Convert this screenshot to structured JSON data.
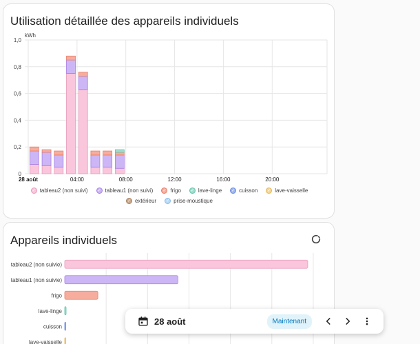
{
  "card1": {
    "title": "Utilisation détaillée des appareils individuels",
    "unit": "kWh"
  },
  "card2": {
    "title": "Appareils individuels"
  },
  "toolbar": {
    "date": "28 août",
    "now_label": "Maintenant"
  },
  "icons": {
    "refresh": "refresh-icon",
    "calendar": "calendar-icon",
    "prev": "chevron-left-icon",
    "next": "chevron-right-icon",
    "menu": "dots-vertical-icon"
  },
  "colors": {
    "tableau2": "#f9c6dc",
    "tableau1": "#cdb6f5",
    "frigo": "#f7ad9e",
    "lave-linge": "#9fdfcf",
    "cuisson": "#9fb6f0",
    "lave-vaisselle": "#f5d79a",
    "exterieur": "#c9a98c",
    "prise-moustique": "#b9d9f5"
  },
  "legend": [
    {
      "label": "tableau2 (non suivi)",
      "color": "#f9c6dc",
      "stroke": "#e79ab9"
    },
    {
      "label": "tableau1 (non suivi)",
      "color": "#cdb6f5",
      "stroke": "#a57fe6"
    },
    {
      "label": "frigo",
      "color": "#f7ad9e",
      "stroke": "#e57f6b"
    },
    {
      "label": "lave-linge",
      "color": "#9fdfcf",
      "stroke": "#5cc3a8"
    },
    {
      "label": "cuisson",
      "color": "#9fb6f0",
      "stroke": "#6a8be0"
    },
    {
      "label": "lave-vaisselle",
      "color": "#f5d79a",
      "stroke": "#e4b659"
    },
    {
      "label": "extérieur",
      "color": "#c9a98c",
      "stroke": "#a5825f"
    },
    {
      "label": "prise-moustique",
      "color": "#b9d9f5",
      "stroke": "#86bceb"
    }
  ],
  "chart_data": [
    {
      "type": "bar",
      "stacked": true,
      "title": "Utilisation détaillée des appareils individuels",
      "ylabel": "kWh",
      "ylim": [
        0,
        1.0
      ],
      "yticks": [
        "0",
        "0,2",
        "0,4",
        "0,6",
        "0,8",
        "1,0"
      ],
      "x_tick_labels": [
        "28 août",
        "04:00",
        "08:00",
        "12:00",
        "16:00",
        "20:00"
      ],
      "x_hours": [
        0,
        1,
        2,
        3,
        4,
        5,
        6,
        7
      ],
      "grid": true,
      "legend_position": "bottom",
      "series": [
        {
          "name": "tableau2 (non suivi)",
          "values": [
            0.07,
            0.06,
            0.05,
            0.75,
            0.63,
            0.05,
            0.05,
            0.04
          ]
        },
        {
          "name": "tableau1 (non suivi)",
          "values": [
            0.1,
            0.1,
            0.09,
            0.1,
            0.1,
            0.09,
            0.09,
            0.1
          ]
        },
        {
          "name": "frigo",
          "values": [
            0.03,
            0.02,
            0.03,
            0.03,
            0.03,
            0.03,
            0.03,
            0.02
          ]
        },
        {
          "name": "lave-linge",
          "values": [
            0,
            0,
            0,
            0,
            0,
            0,
            0,
            0.02
          ]
        }
      ]
    },
    {
      "type": "bar",
      "orientation": "horizontal",
      "title": "Appareils individuels",
      "categories": [
        "tableau2 (non suivie)",
        "tableau1 (non suivie)",
        "frigo",
        "lave-linge",
        "cuisson",
        "lave-vaisselle"
      ],
      "values": [
        1.76,
        0.82,
        0.24,
        0.01,
        0.005,
        0.003
      ],
      "xlim": [
        0,
        1.9
      ],
      "colors": [
        "#f9c6dc",
        "#cdb6f5",
        "#f7ad9e",
        "#9fdfcf",
        "#9fb6f0",
        "#f5d79a"
      ],
      "strokes": [
        "#e79ab9",
        "#a57fe6",
        "#e57f6b",
        "#5cc3a8",
        "#6a8be0",
        "#e4b659"
      ]
    }
  ]
}
